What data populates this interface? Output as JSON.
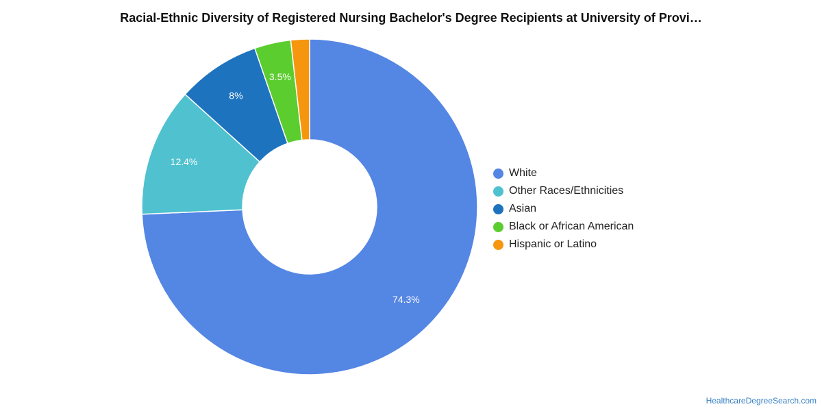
{
  "chart_data": {
    "type": "pie",
    "variant": "donut",
    "title": "Racial-Ethnic Diversity of Registered Nursing Bachelor's Degree Recipients at University of Provi…",
    "categories": [
      "White",
      "Other Races/Ethnicities",
      "Asian",
      "Black or African American",
      "Hispanic or Latino"
    ],
    "values": [
      74.3,
      12.4,
      8,
      3.5,
      1.8
    ],
    "data_labels": [
      "74.3%",
      "12.4%",
      "8%",
      "3.5%",
      ""
    ],
    "colors": [
      "#5486e3",
      "#4fc1cf",
      "#1e73be",
      "#5ccd2f",
      "#f6960f"
    ],
    "legend_position": "right"
  },
  "source": "HealthcareDegreeSearch.com"
}
